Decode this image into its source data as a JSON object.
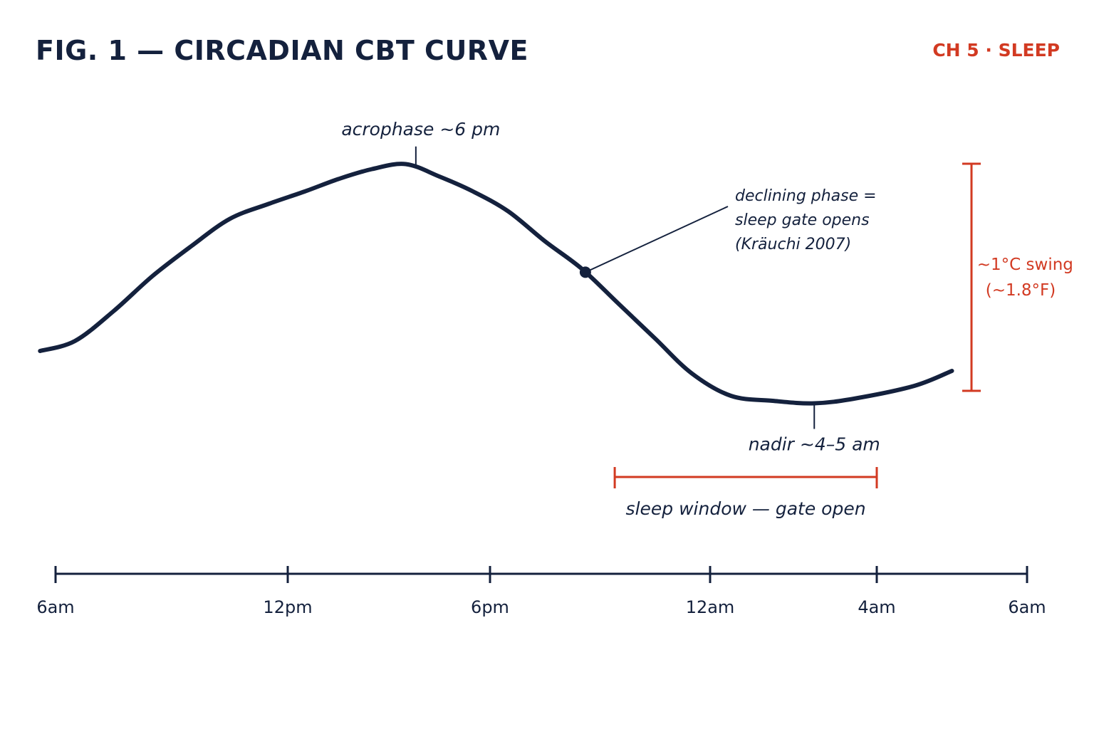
{
  "title": "FIG. 1 — CIRCADIAN CBT CURVE",
  "chapter_tag": "CH 5 · SLEEP",
  "colors": {
    "ink": "#14213d",
    "accent": "#d23a22"
  },
  "chart_data": {
    "type": "line",
    "title": "FIG. 1 — CIRCADIAN CBT CURVE",
    "xlabel": "",
    "ylabel": "",
    "x_unit": "hour of day (continuous from 6am)",
    "xlim": [
      6,
      30
    ],
    "x_ticks": [
      {
        "value": 6,
        "label": "6am"
      },
      {
        "value": 12,
        "label": "12pm"
      },
      {
        "value": 18,
        "label": "6pm"
      },
      {
        "value": 24,
        "label": "12am"
      },
      {
        "value": 28,
        "label": "4am"
      },
      {
        "value": 30,
        "label": "6am"
      }
    ],
    "y_relative_range_celsius": [
      -0.5,
      0.5
    ],
    "grid": false,
    "legend": "none",
    "series": [
      {
        "x": [
          5.6,
          6.5,
          7.5,
          8.5,
          9.5,
          10.5,
          11.5,
          12.5,
          13.5,
          14.5,
          15.5,
          16.5,
          17.5,
          18.5,
          19.5,
          20.5,
          21.5,
          22.5,
          23.5,
          24.5,
          25.5,
          26.5,
          27.5,
          28.5,
          29.0
        ],
        "y": [
          -0.28,
          -0.24,
          -0.12,
          0.02,
          0.14,
          0.25,
          0.31,
          0.36,
          0.41,
          0.45,
          0.47,
          0.42,
          0.36,
          0.28,
          0.16,
          0.05,
          -0.09,
          -0.23,
          -0.37,
          -0.46,
          -0.48,
          -0.49,
          -0.47,
          -0.42,
          -0.36
        ]
      }
    ],
    "annotations": {
      "acrophase": {
        "label": "acrophase ~6 pm",
        "x": 15.8
      },
      "declining_point": {
        "lines": [
          "declining phase =",
          "sleep gate opens",
          "(Kräuchi 2007)"
        ],
        "x": 20.6
      },
      "nadir": {
        "label": "nadir ~4–5 am",
        "x": 26.5
      },
      "amplitude": {
        "lines": [
          "~1°C swing",
          "(~1.8°F)"
        ]
      },
      "sleep_window": {
        "label": "sleep window — gate open",
        "x_start": 21.4,
        "x_end": 28.0
      }
    }
  }
}
